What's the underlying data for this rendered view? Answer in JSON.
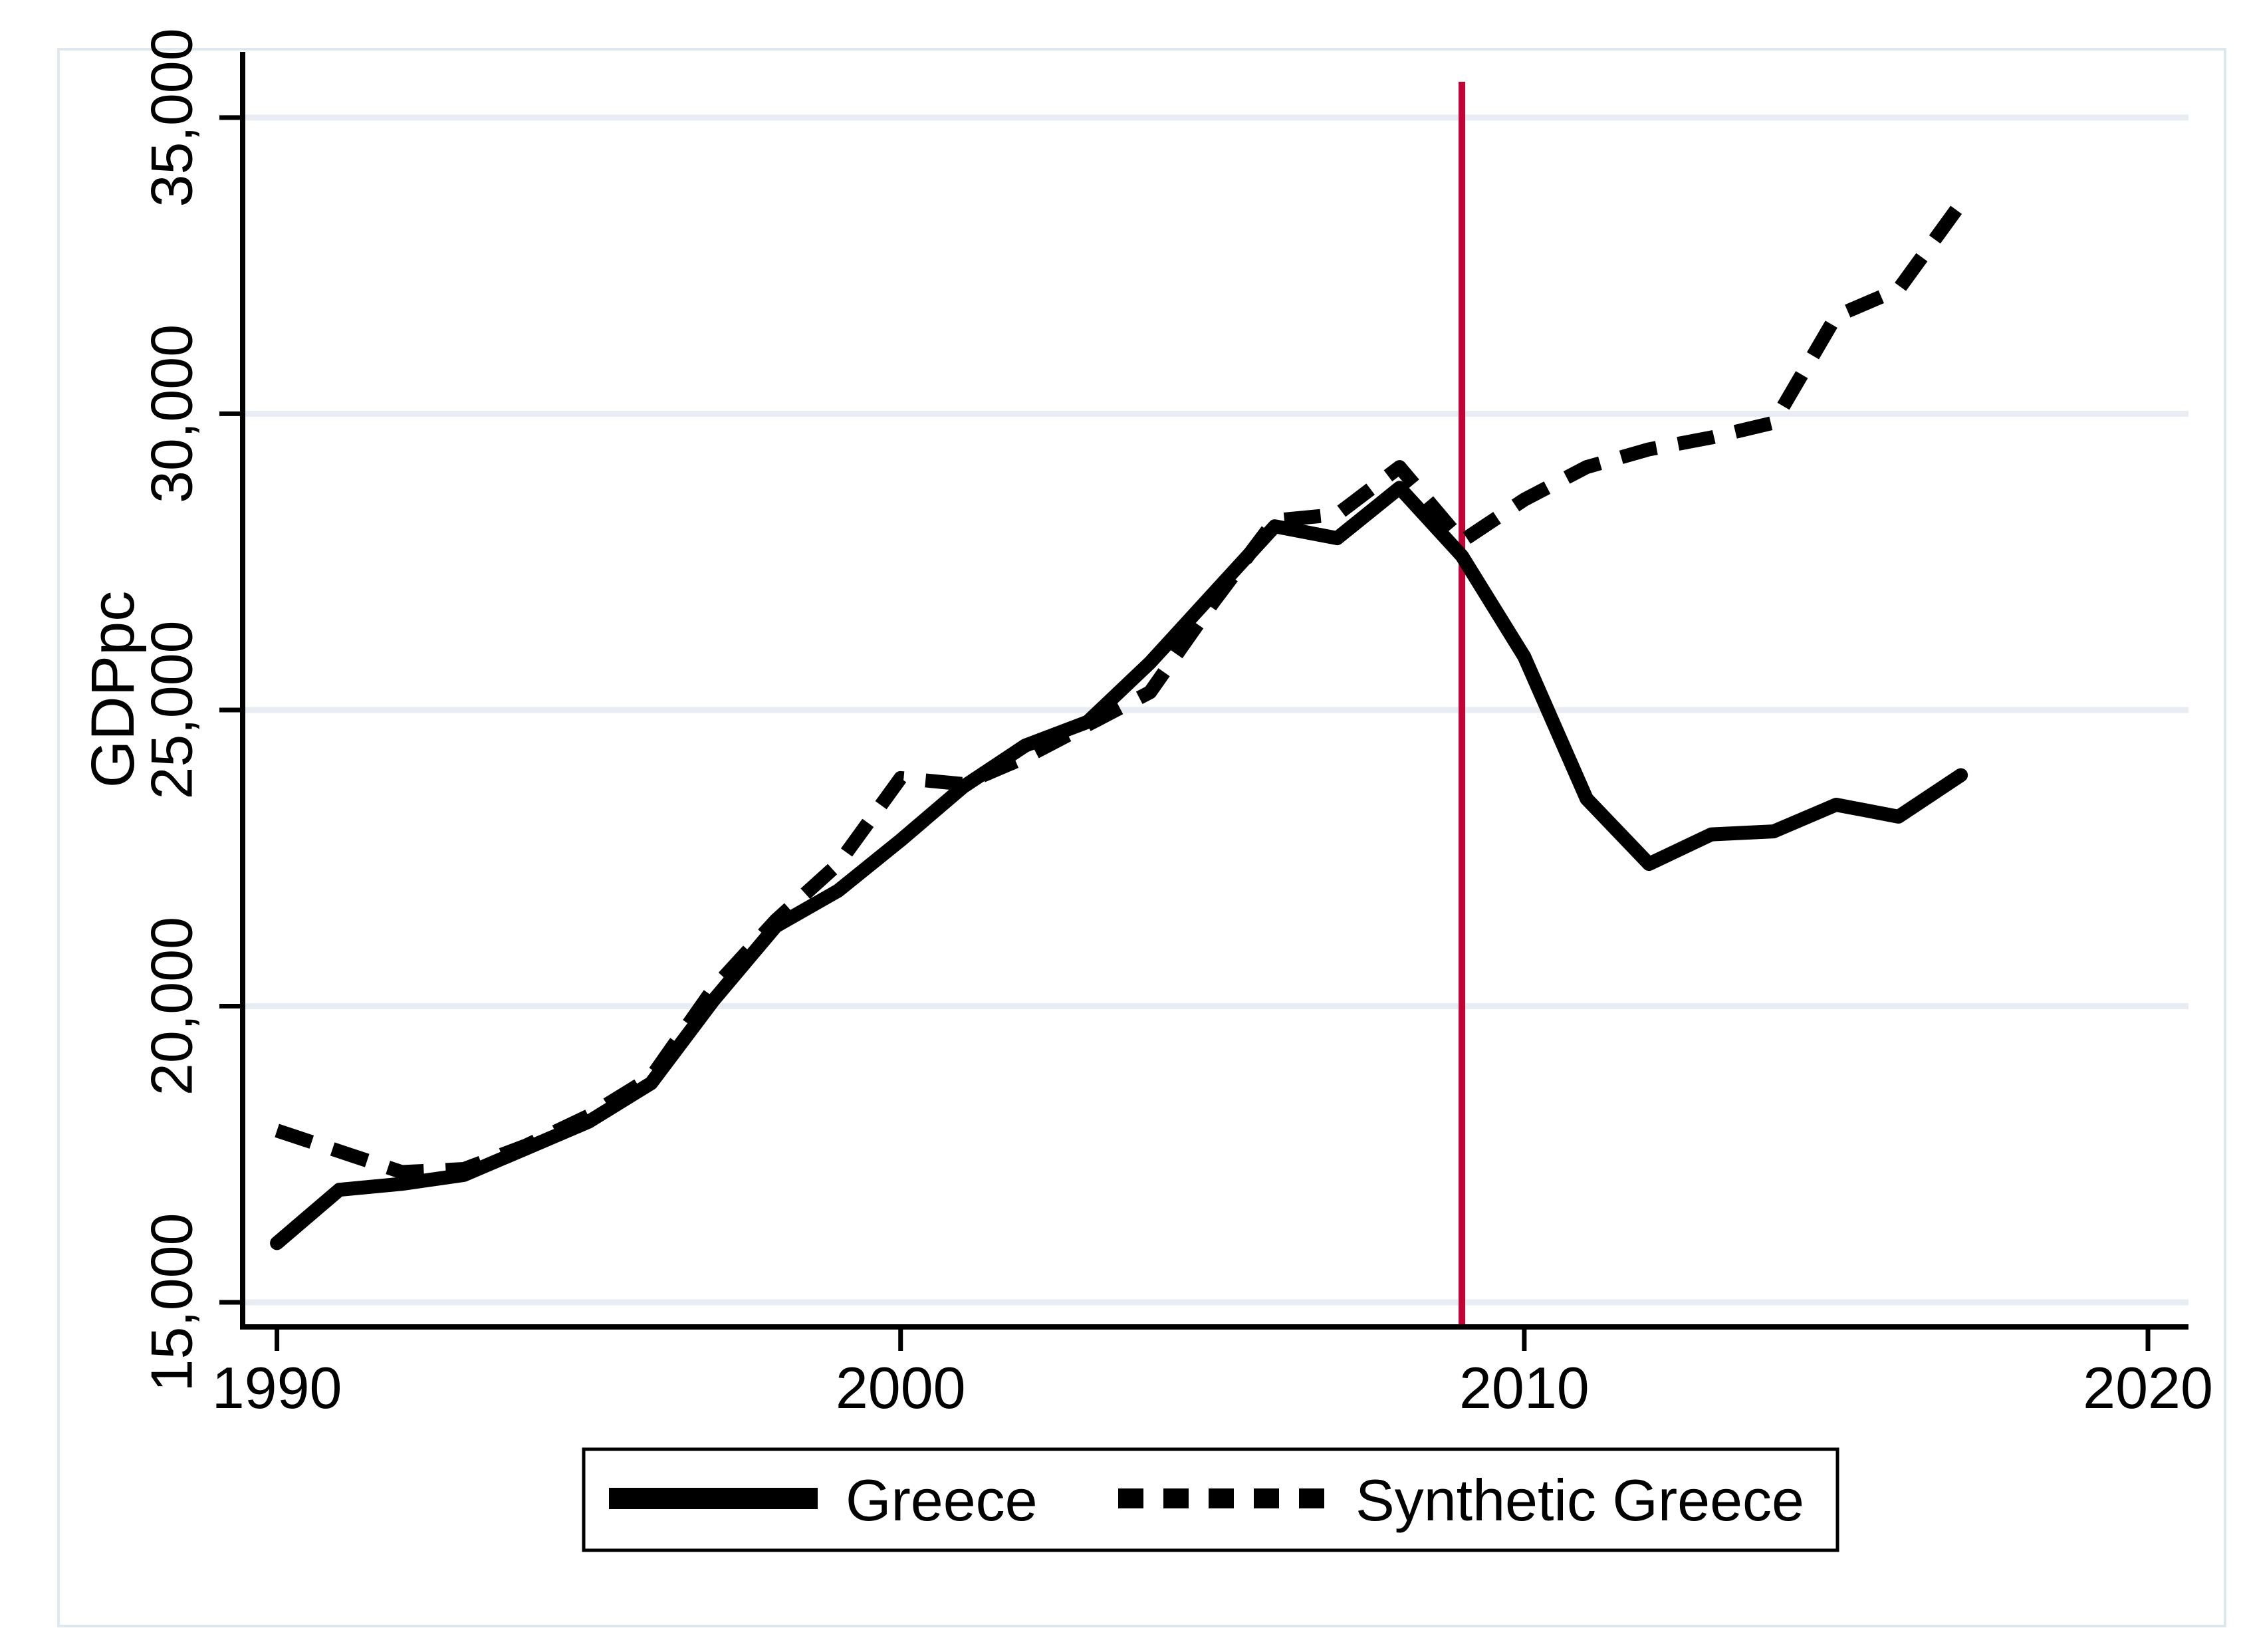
{
  "figure": {
    "kind": "stata line chart",
    "title": ""
  },
  "axes": {
    "y_title": "GDPpc",
    "y_ticks": [
      35000,
      30000,
      25000,
      20000,
      15000
    ],
    "y_tick_labels": [
      "35,000",
      "30,000",
      "25,000",
      "20,000",
      "15,000"
    ],
    "x_ticks": [
      1990,
      2000,
      2010,
      2020
    ],
    "x_tick_labels": [
      "1990",
      "2000",
      "2010",
      "2020"
    ]
  },
  "legend": {
    "items": [
      {
        "label": "Greece",
        "style": "solid"
      },
      {
        "label": "Synthetic Greece",
        "style": "dashed"
      }
    ]
  },
  "colors": {
    "series": "#000000",
    "vline": "#c10435",
    "grid": "#e7edf3",
    "frame": "#dfe7ee",
    "background": "#ffffff",
    "text": "#000000"
  },
  "chart_data": {
    "type": "line",
    "title": "",
    "xlabel": "",
    "ylabel": "GDPpc",
    "x": [
      1990,
      1991,
      1992,
      1993,
      1994,
      1995,
      1996,
      1997,
      1998,
      1999,
      2000,
      2001,
      2002,
      2003,
      2004,
      2005,
      2006,
      2007,
      2008,
      2009,
      2010,
      2011,
      2012,
      2013,
      2014,
      2015,
      2016,
      2017
    ],
    "series": [
      {
        "name": "Greece",
        "dash": false,
        "values": [
          16000,
          16900,
          17000,
          17150,
          17600,
          18050,
          18700,
          20100,
          21350,
          21950,
          22800,
          23700,
          24400,
          24800,
          25800,
          26950,
          28100,
          27900,
          28750,
          27600,
          25900,
          23500,
          22400,
          22900,
          22950,
          23400,
          23200,
          23900
        ]
      },
      {
        "name": "Synthetic Greece",
        "dash": true,
        "values": [
          17900,
          17550,
          17200,
          17250,
          17650,
          18150,
          18800,
          20300,
          21450,
          22400,
          23850,
          23750,
          24200,
          24750,
          25300,
          26800,
          28200,
          28300,
          29100,
          27850,
          28550,
          29100,
          29400,
          29600,
          29850,
          31650,
          32100,
          33550
        ]
      }
    ],
    "vline_x": 2009,
    "xlim": [
      1989.45,
      2020.65
    ],
    "ylim": [
      14585,
      36110
    ],
    "grid": true,
    "legend_position": "bottom"
  }
}
